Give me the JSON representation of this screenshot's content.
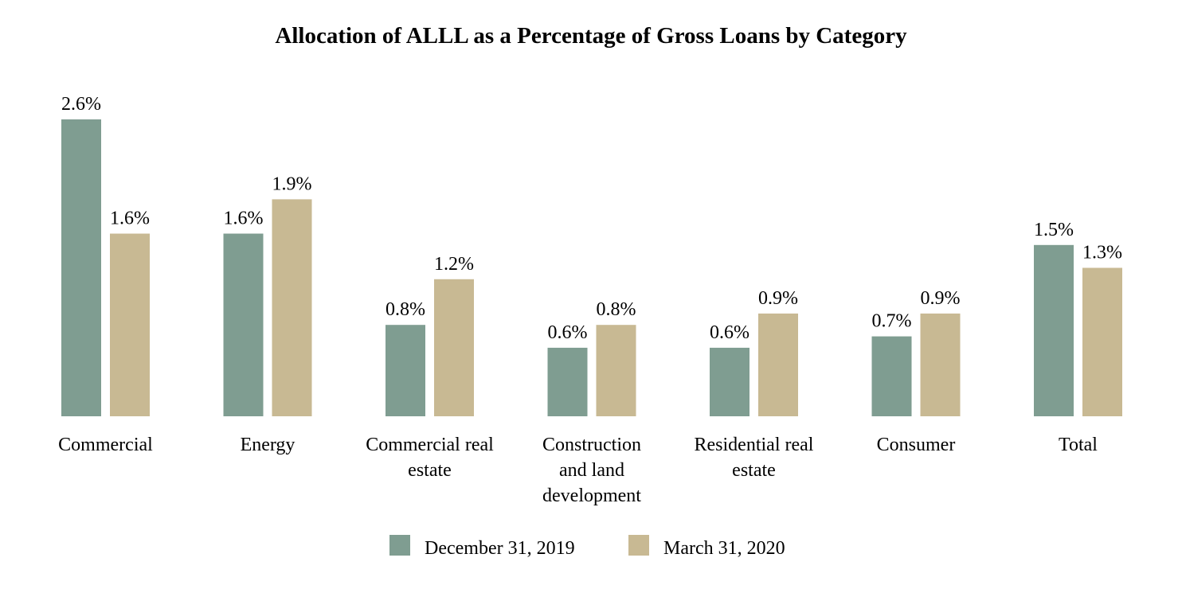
{
  "chart_data": {
    "type": "bar",
    "title": "Allocation of ALLL as a Percentage of Gross Loans by Category",
    "xlabel": "",
    "ylabel": "",
    "categories": [
      [
        "Commercial"
      ],
      [
        "Energy"
      ],
      [
        "Commercial real",
        "estate"
      ],
      [
        "Construction",
        "and land",
        "development"
      ],
      [
        "Residential real",
        "estate"
      ],
      [
        "Consumer"
      ],
      [
        "Total"
      ]
    ],
    "series": [
      {
        "name": "December 31, 2019",
        "color": "#7f9d91",
        "values": [
          2.6,
          1.6,
          0.8,
          0.6,
          0.6,
          0.7,
          1.5
        ],
        "labels": [
          "2.6%",
          "1.6%",
          "0.8%",
          "0.6%",
          "0.6%",
          "0.7%",
          "1.5%"
        ]
      },
      {
        "name": "March 31, 2020",
        "color": "#c8b993",
        "values": [
          1.6,
          1.9,
          1.2,
          0.8,
          0.9,
          0.9,
          1.3
        ],
        "labels": [
          "1.6%",
          "1.9%",
          "1.2%",
          "0.8%",
          "0.9%",
          "0.9%",
          "1.3%"
        ]
      }
    ],
    "ylim": [
      0,
      2.6
    ],
    "grid": false,
    "legend_position": "bottom-center"
  }
}
